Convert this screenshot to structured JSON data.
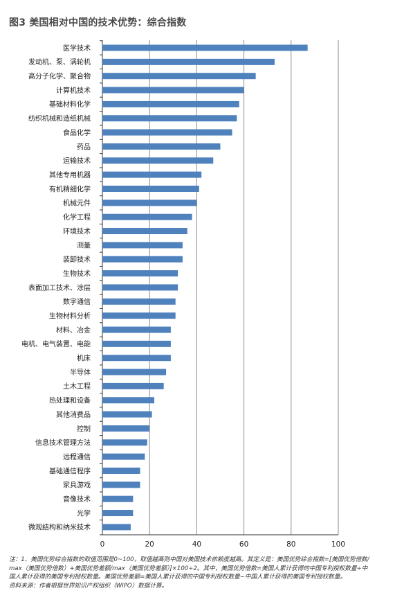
{
  "title": "图3  美国相对中国的技术优势：综合指数",
  "chart_data": {
    "type": "bar",
    "orientation": "horizontal",
    "title": "图3  美国相对中国的技术优势：综合指数",
    "xlim": [
      0,
      100
    ],
    "xticks": [
      0,
      20,
      40,
      60,
      80,
      100
    ],
    "grid": true,
    "bar_color": "#4f81bd",
    "categories": [
      "医学技术",
      "发动机、泵、涡轮机",
      "高分子化学、聚合物",
      "计算机技术",
      "基础材料化学",
      "纺织机械和造纸机械",
      "食品化学",
      "药品",
      "运输技术",
      "其他专用机器",
      "有机精细化学",
      "机械元件",
      "化学工程",
      "环境技术",
      "测量",
      "装卸技术",
      "生物技术",
      "表面加工技术、涂层",
      "数字通信",
      "生物材料分析",
      "材料、冶金",
      "电机、电气装置、电能",
      "机床",
      "半导体",
      "土木工程",
      "热处理和设备",
      "其他消费品",
      "控制",
      "信息技术管理方法",
      "远程通信",
      "基础通信程序",
      "家具游戏",
      "音像技术",
      "光学",
      "微观结构和纳米技术"
    ],
    "values": [
      87,
      73,
      65,
      60,
      58,
      57,
      55,
      50,
      47,
      42,
      41,
      40,
      38,
      36,
      34,
      34,
      32,
      32,
      31,
      31,
      29,
      29,
      29,
      27,
      26,
      22,
      21,
      20,
      19,
      18,
      16,
      16,
      13,
      13,
      12
    ]
  },
  "notes": [
    "注：1、美国优势综合指数的取值范围是0~100，取值越高则中国对美国技术依赖度越高。其定义是：美国优势综合指数=[美国优势倍数/",
    "max（美国优势倍数）+美国优势差额/max（美国优势差额）]×100÷2。其中，美国优势倍数=美国人累计获得的中国专利授权数量÷中",
    "国人累计获得的美国专利授权数量。美国优势差额=美国人累计获得的中国专利授权数量−中国人累计获得的美国专利授权数量。",
    "资料来源：作者根据世界知识产权组织（WIPO）数据计算。"
  ]
}
